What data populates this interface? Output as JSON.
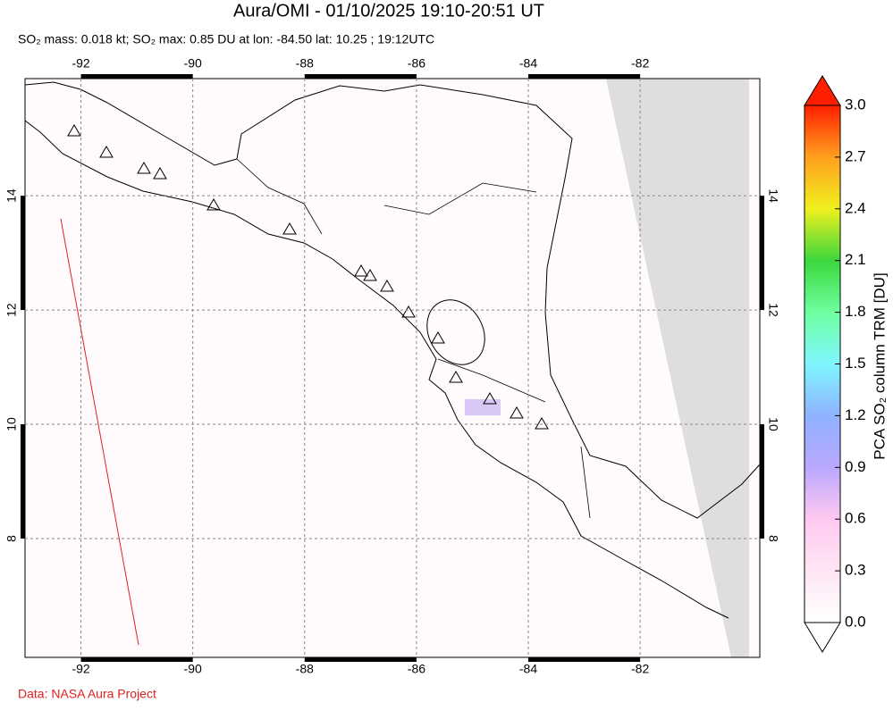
{
  "header": {
    "title": "Aura/OMI - 01/10/2025 19:10-20:51 UT",
    "subtitle": "SO₂ mass: 0.018 kt; SO₂ max: 0.85 DU at lon: -84.50 lat: 10.25 ; 19:12UTC"
  },
  "map": {
    "xlim": [
      -93,
      -79.86
    ],
    "ylim": [
      5.92,
      16.05
    ],
    "xticks": [
      -92,
      -90,
      -88,
      -86,
      -84,
      -82
    ],
    "yticks": [
      8,
      10,
      12,
      14
    ]
  },
  "colorbar": {
    "label": "PCA SO₂ column TRM [DU]",
    "range": [
      0,
      3
    ],
    "ticks": [
      {
        "value": 0,
        "label": "0.0"
      },
      {
        "value": 0.3,
        "label": "0.3"
      },
      {
        "value": 0.6,
        "label": "0.6"
      },
      {
        "value": 0.9,
        "label": "0.9"
      },
      {
        "value": 1.2,
        "label": "1.2"
      },
      {
        "value": 1.5,
        "label": "1.5"
      },
      {
        "value": 1.8,
        "label": "1.8"
      },
      {
        "value": 2.1,
        "label": "2.1"
      },
      {
        "value": 2.4,
        "label": "2.4"
      },
      {
        "value": 2.7,
        "label": "2.7"
      },
      {
        "value": 3,
        "label": "3.0"
      }
    ]
  },
  "footer": {
    "credit": "Data: NASA Aura Project"
  }
}
